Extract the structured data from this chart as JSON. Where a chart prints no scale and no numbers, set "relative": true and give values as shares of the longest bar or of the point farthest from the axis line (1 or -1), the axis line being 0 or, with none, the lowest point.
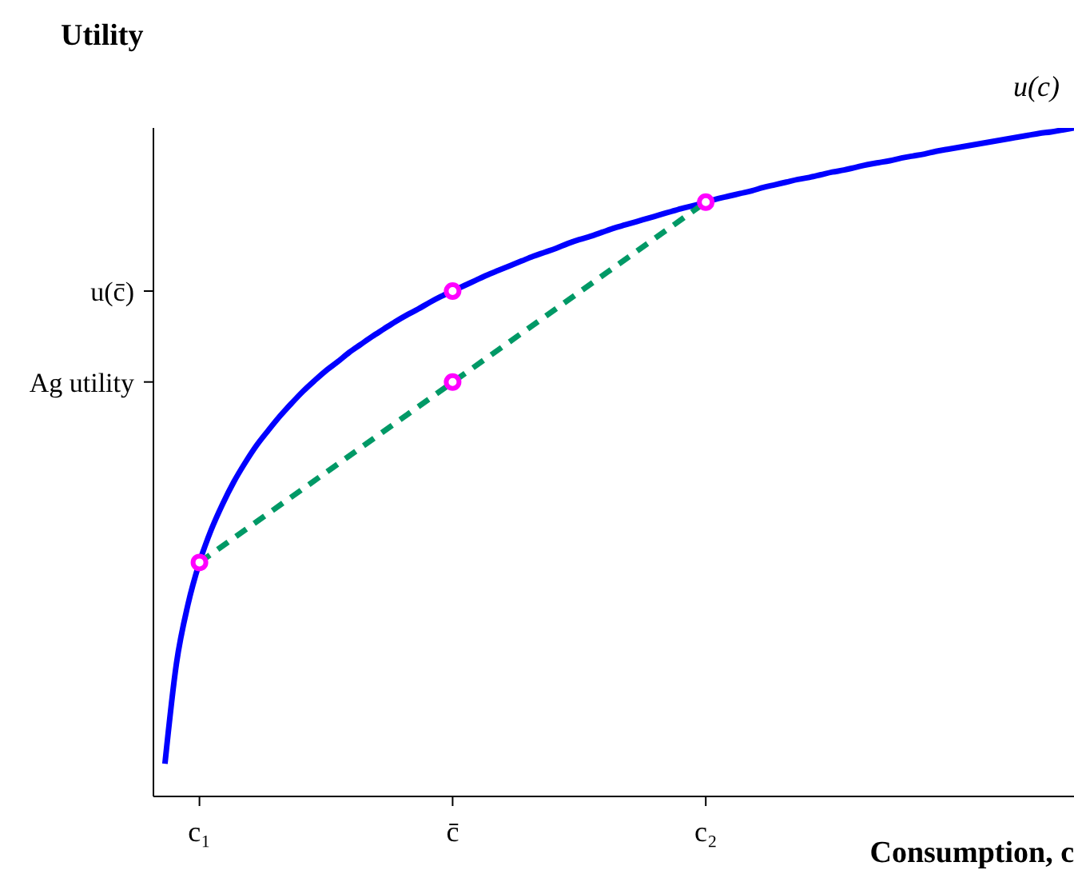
{
  "chart_data": {
    "type": "line",
    "relative": true,
    "ylabel": "Utility",
    "xlabel": "Consumption, c",
    "categories": [
      null,
      null,
      null,
      null,
      "c₁",
      null,
      null,
      null,
      null,
      null,
      null,
      null,
      null,
      null,
      null,
      null,
      null,
      null,
      null,
      null,
      null,
      null,
      null,
      null,
      null,
      null,
      "c̄",
      null,
      null,
      null,
      null,
      null,
      null,
      null,
      null,
      null,
      null,
      null,
      null,
      null,
      null,
      null,
      null,
      null,
      null,
      null,
      null,
      null,
      "c₂",
      null,
      null,
      null,
      null,
      null,
      null,
      null,
      null,
      null,
      null,
      null,
      null,
      null,
      null,
      null,
      null,
      null,
      null,
      null,
      null,
      null,
      null,
      null,
      null,
      null,
      null,
      null,
      null,
      null,
      null,
      null,
      null
    ],
    "annotations": [
      "u(c̄)",
      "Ag utility"
    ],
    "series": [
      {
        "name": "u(c)",
        "type": "line",
        "color": "#0000ff",
        "marker": "none",
        "line_style": "solid",
        "values": [
          null,
          0.049,
          0.199,
          0.287,
          0.35,
          0.398,
          0.437,
          0.471,
          0.5,
          0.526,
          0.548,
          0.569,
          0.588,
          0.606,
          0.622,
          0.637,
          0.65,
          0.664,
          0.676,
          0.688,
          0.699,
          0.71,
          0.72,
          0.729,
          0.739,
          0.748,
          0.756,
          0.764,
          0.772,
          0.78,
          0.787,
          0.794,
          0.801,
          0.808,
          0.814,
          0.82,
          0.827,
          0.833,
          0.838,
          0.844,
          0.85,
          0.855,
          0.86,
          0.865,
          0.87,
          0.875,
          0.88,
          0.884,
          0.889,
          0.894,
          0.898,
          0.902,
          0.906,
          0.911,
          0.915,
          0.919,
          0.923,
          0.926,
          0.93,
          0.934,
          0.937,
          0.941,
          0.945,
          0.948,
          0.951,
          0.955,
          0.958,
          0.961,
          0.965,
          0.968,
          0.971,
          0.974,
          0.977,
          0.98,
          0.983,
          0.986,
          0.989,
          0.992,
          0.994,
          0.997,
          1
        ]
      },
      {
        "type": "line",
        "color": "#009966",
        "marker": "none",
        "line_style": "dashed",
        "x": [
          "c₁",
          "c₂"
        ],
        "values": [
          0.35,
          0.889
        ]
      },
      {
        "type": "scatter",
        "color": "#ff00ff",
        "marker": "circle",
        "x": [
          "c₁",
          "c̄",
          "c̄",
          "c₂"
        ],
        "values": [
          0.35,
          0.756,
          0.62,
          0.889
        ]
      }
    ]
  }
}
